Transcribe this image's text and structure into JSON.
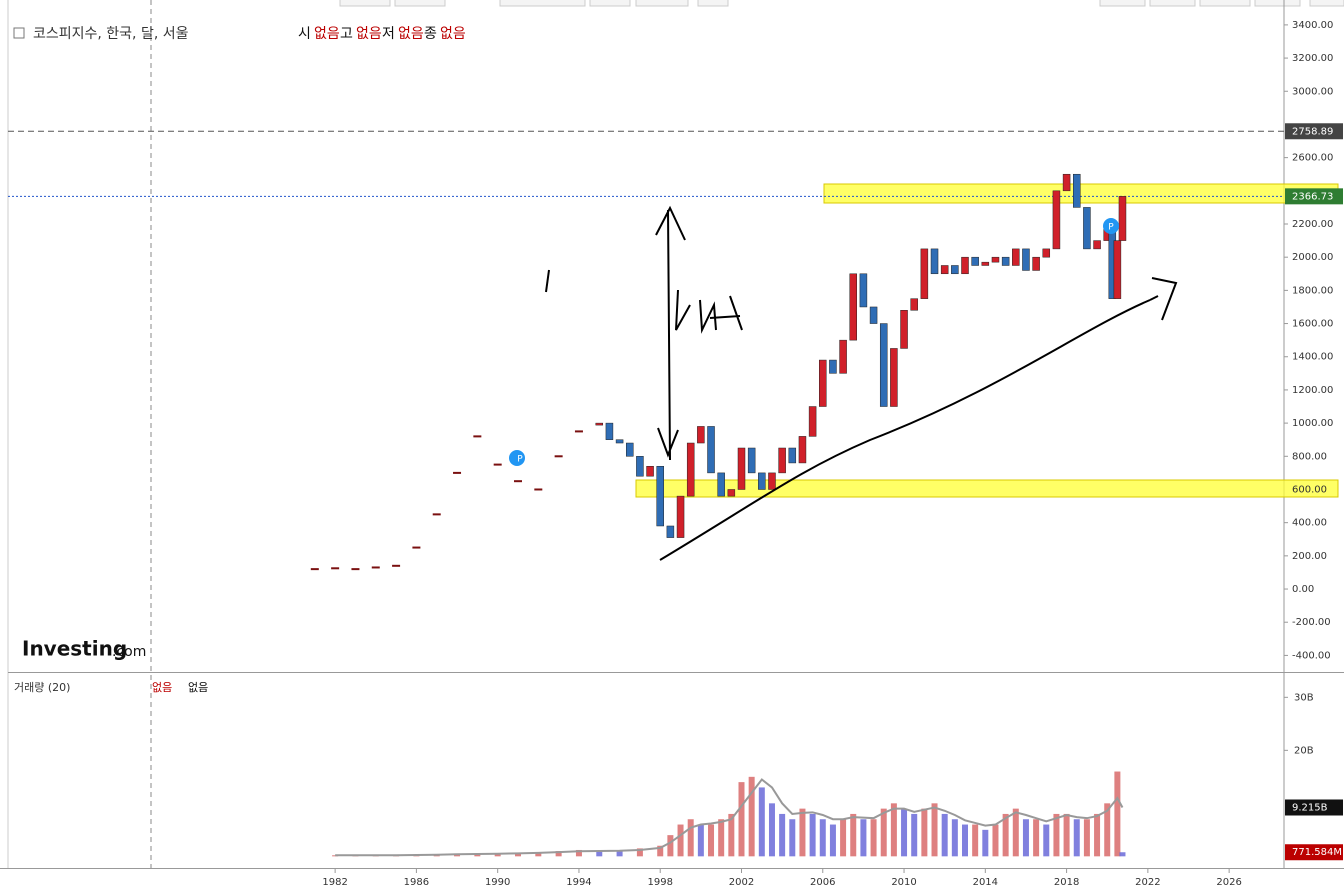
{
  "header": {
    "title": "코스피지수, 한국, 달, 서울",
    "ohlc": [
      "시",
      "없음",
      "고",
      "없음",
      "저",
      "없음",
      "종",
      "없음"
    ]
  },
  "logo": {
    "main": "Investing",
    "suffix": ".com"
  },
  "chart_data": [
    {
      "type": "candlestick",
      "up_color": "#d0202a",
      "down_color": "#2f6db5",
      "ylim": [
        -500,
        3550
      ],
      "yticks": [
        {
          "value": 3400,
          "label": "3400.00"
        },
        {
          "value": 3200,
          "label": "3200.00"
        },
        {
          "value": 3000,
          "label": "3000.00"
        },
        {
          "value": 2600,
          "label": "2600.00"
        },
        {
          "value": 2200,
          "label": "2200.00"
        },
        {
          "value": 2000,
          "label": "2000.00"
        },
        {
          "value": 1800,
          "label": "1800.00"
        },
        {
          "value": 1600,
          "label": "1600.00"
        },
        {
          "value": 1400,
          "label": "1400.00"
        },
        {
          "value": 1200,
          "label": "1200.00"
        },
        {
          "value": 1000,
          "label": "1000.00"
        },
        {
          "value": 800,
          "label": "800.00"
        },
        {
          "value": 400,
          "label": "400.00"
        },
        {
          "value": 200,
          "label": "200.00"
        },
        {
          "value": 0,
          "label": "0.00"
        },
        {
          "value": -200,
          "label": "-200.00"
        },
        {
          "value": -400,
          "label": "-400.00"
        }
      ],
      "x": [
        1995.0,
        1995.5,
        1996.0,
        1996.5,
        1997.0,
        1997.5,
        1998.0,
        1998.5,
        1999.0,
        1999.5,
        2000.0,
        2000.5,
        2001.0,
        2001.5,
        2002.0,
        2002.5,
        2003.0,
        2003.5,
        2004.0,
        2004.5,
        2005.0,
        2005.5,
        2006.0,
        2006.5,
        2007.0,
        2007.5,
        2008.0,
        2008.5,
        2009.0,
        2009.5,
        2010.0,
        2010.5,
        2011.0,
        2011.5,
        2012.0,
        2012.5,
        2013.0,
        2013.5,
        2014.0,
        2014.5,
        2015.0,
        2015.5,
        2016.0,
        2016.5,
        2017.0,
        2017.5,
        2018.0,
        2018.5,
        2019.0,
        2019.5,
        2020.0,
        2020.25,
        2020.5,
        2020.75
      ],
      "values": [
        1000,
        900,
        880,
        800,
        680,
        740,
        380,
        310,
        560,
        880,
        980,
        700,
        560,
        600,
        850,
        700,
        600,
        700,
        850,
        760,
        920,
        1100,
        1380,
        1300,
        1500,
        1900,
        1700,
        1600,
        1100,
        1450,
        1680,
        1750,
        2050,
        1900,
        1950,
        1900,
        2000,
        1950,
        1970,
        2000,
        1950,
        2050,
        1920,
        2000,
        2050,
        2400,
        2500,
        2300,
        2050,
        2100,
        2190,
        1750,
        2100,
        2366.73
      ],
      "early_x": [
        1981,
        1982,
        1983,
        1984,
        1985,
        1986,
        1987,
        1988,
        1989,
        1990,
        1991,
        1992,
        1993,
        1994
      ],
      "early_values": [
        120,
        125,
        120,
        130,
        140,
        250,
        450,
        700,
        920,
        750,
        650,
        600,
        800,
        950
      ],
      "price_lines": [
        {
          "value": 2758.89,
          "label": "2758.89"
        },
        {
          "value": 2366.73,
          "label": "2366.73"
        },
        {
          "value": 600,
          "label": "600.00"
        }
      ]
    },
    {
      "type": "bar",
      "title": "거래량 (20)",
      "legend_values": [
        "없음",
        "없음"
      ],
      "up_color": "#d86a6a",
      "down_color": "#6a6ad8",
      "ma_color": "#999999",
      "xlim": [
        1965.9,
        2028.7
      ],
      "xticks": [
        1982,
        1986,
        1990,
        1994,
        1998,
        2002,
        2006,
        2010,
        2014,
        2018,
        2022,
        2026
      ],
      "ylim": [
        -2.2,
        34.4
      ],
      "yticks": [
        {
          "value": 30,
          "label": "30B"
        },
        {
          "value": 20,
          "label": "20B"
        }
      ],
      "x": [
        1982,
        1983,
        1984,
        1985,
        1986,
        1987,
        1988,
        1989,
        1990,
        1991,
        1992,
        1993,
        1994,
        1995,
        1996,
        1997,
        1998.0,
        1998.5,
        1999.0,
        1999.5,
        2000.0,
        2000.5,
        2001.0,
        2001.5,
        2002.0,
        2002.5,
        2003.0,
        2003.5,
        2004.0,
        2004.5,
        2005.0,
        2005.5,
        2006.0,
        2006.5,
        2007.0,
        2007.5,
        2008.0,
        2008.5,
        2009.0,
        2009.5,
        2010.0,
        2010.5,
        2011.0,
        2011.5,
        2012.0,
        2012.5,
        2013.0,
        2013.5,
        2014.0,
        2014.5,
        2015.0,
        2015.5,
        2016.0,
        2016.5,
        2017.0,
        2017.5,
        2018.0,
        2018.5,
        2019.0,
        2019.5,
        2020.0,
        2020.5,
        2020.75
      ],
      "values": [
        0.2,
        0.2,
        0.2,
        0.2,
        0.3,
        0.4,
        0.5,
        0.5,
        0.5,
        0.6,
        0.8,
        1,
        1.2,
        1.1,
        1,
        1.5,
        2,
        4,
        6,
        7,
        6,
        6,
        7,
        8,
        14,
        15,
        13,
        10,
        8,
        7,
        9,
        8,
        7,
        6,
        7,
        8,
        7,
        7,
        9,
        10,
        9,
        8,
        9,
        10,
        8,
        7,
        6,
        6,
        5,
        6,
        8,
        9,
        7,
        7,
        6,
        8,
        8,
        7,
        7,
        8,
        10,
        16,
        0.771584
      ],
      "ma_values": [
        0.2,
        0.2,
        0.2,
        0.2,
        0.25,
        0.3,
        0.4,
        0.45,
        0.5,
        0.55,
        0.65,
        0.8,
        0.95,
        1.0,
        1.05,
        1.2,
        1.6,
        2.6,
        4,
        5.4,
        6,
        6.2,
        6.5,
        7,
        9.5,
        12,
        14.5,
        13,
        10,
        8,
        8.2,
        8.3,
        7.8,
        7,
        7,
        7.4,
        7.3,
        7.2,
        8.2,
        9,
        9,
        8.4,
        8.8,
        9.2,
        8.6,
        7.8,
        6.8,
        6.3,
        5.8,
        6,
        7.2,
        8.3,
        7.8,
        7.2,
        6.6,
        7.2,
        7.8,
        7.4,
        7.2,
        7.6,
        8.6,
        11,
        9.215
      ],
      "last_labels": [
        {
          "value": 9.215,
          "label": "9.215B"
        },
        {
          "value": 0.771584,
          "label": "771.584M"
        }
      ]
    }
  ]
}
